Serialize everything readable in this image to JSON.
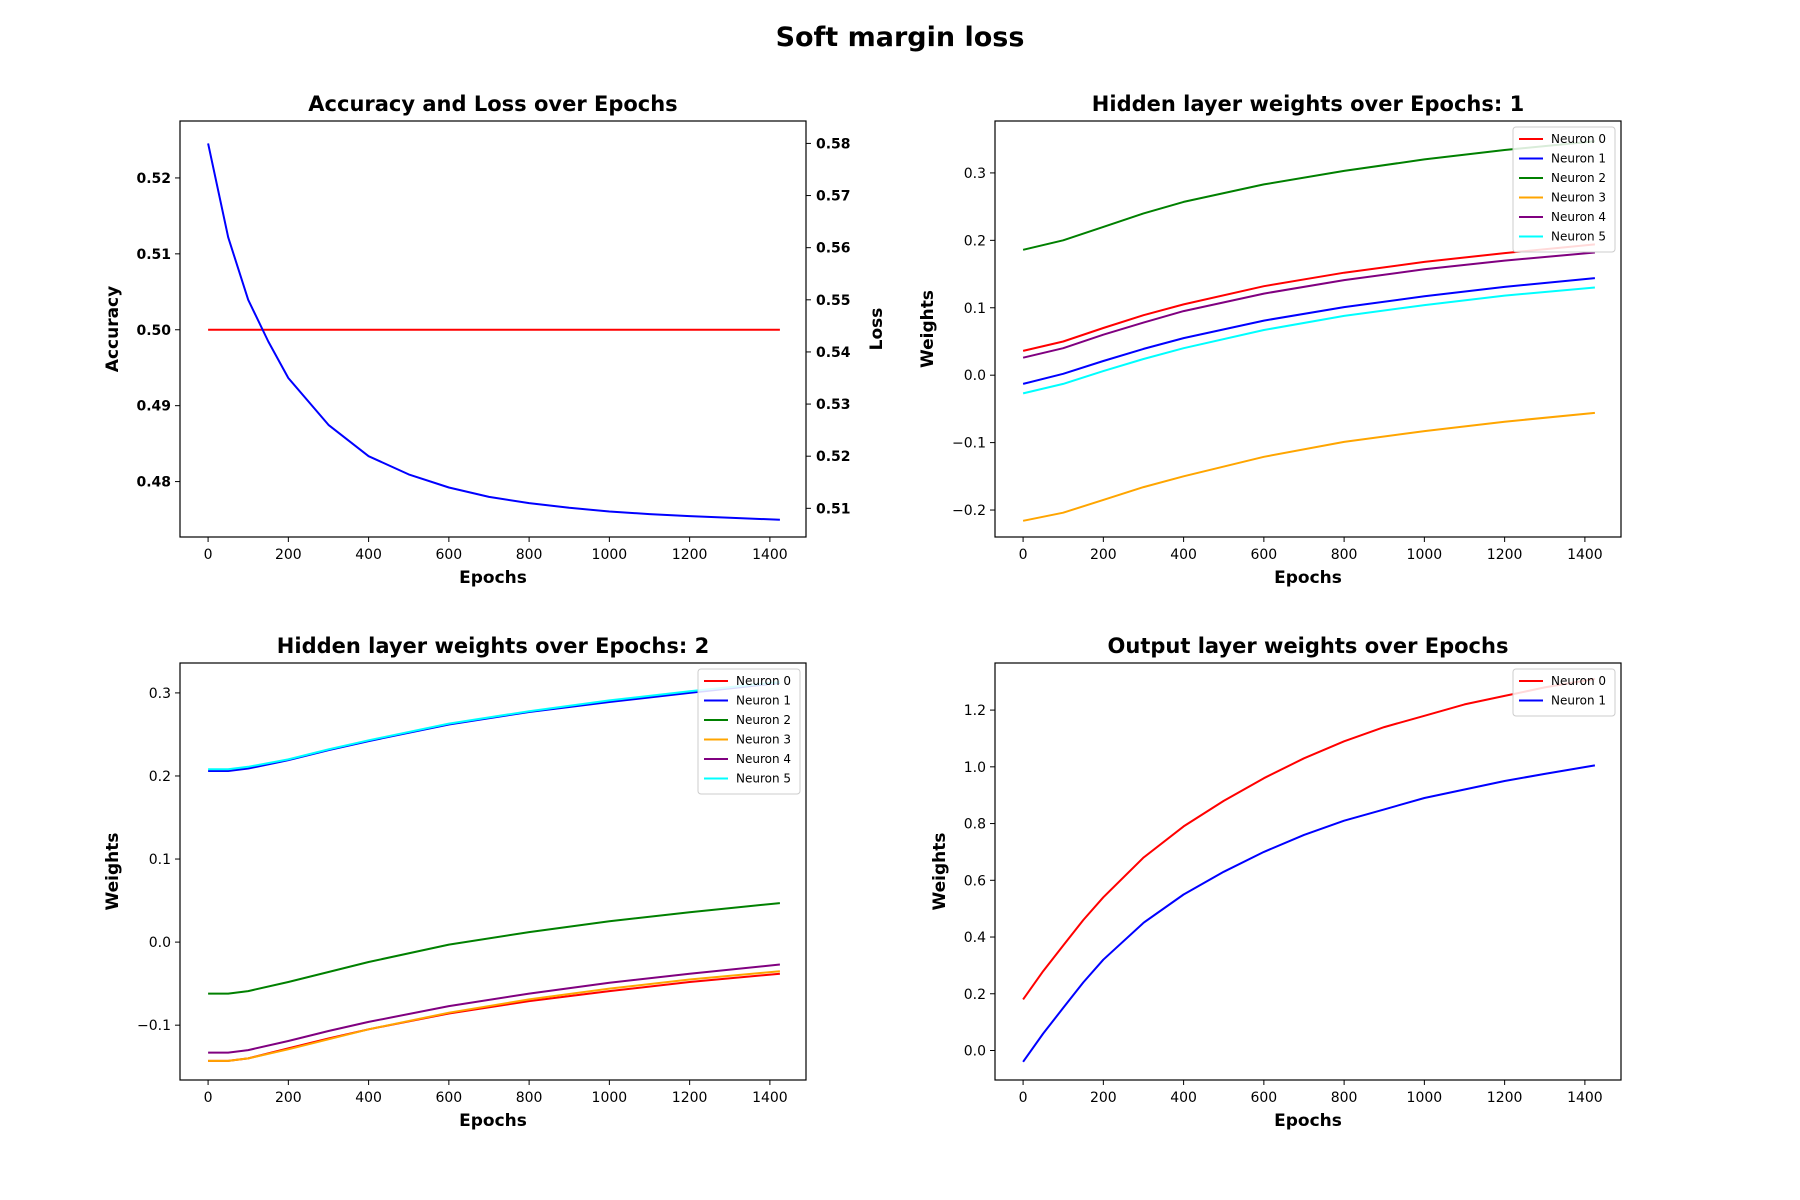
{
  "figure": {
    "title": "Soft margin loss"
  },
  "chart_data": [
    {
      "type": "line",
      "title": "Accuracy and Loss over Epochs",
      "xlabel": "Epochs",
      "xlim": [
        -70,
        1490
      ],
      "xticks": [
        0,
        200,
        400,
        600,
        800,
        1000,
        1200,
        1400
      ],
      "left_axis": {
        "label": "Accuracy",
        "color": "#ff0000",
        "ylim": [
          0.4727,
          0.5275
        ],
        "ticks": [
          0.48,
          0.49,
          0.5,
          0.51,
          0.52
        ],
        "tick_labels": [
          "0.48",
          "0.49",
          "0.50",
          "0.51",
          "0.52"
        ]
      },
      "right_axis": {
        "label": "Loss",
        "color": "#0000ff",
        "ylim": [
          0.5045,
          0.5843
        ],
        "ticks": [
          0.51,
          0.52,
          0.53,
          0.54,
          0.55,
          0.56,
          0.57,
          0.58
        ],
        "tick_labels": [
          "0.51",
          "0.52",
          "0.53",
          "0.54",
          "0.55",
          "0.56",
          "0.57",
          "0.58"
        ]
      },
      "legend": null,
      "series": [
        {
          "axis": "left",
          "color": "#ff0000",
          "x": [
            0,
            1425
          ],
          "y": [
            0.5,
            0.5
          ]
        },
        {
          "axis": "right",
          "color": "#0000ff",
          "x": [
            0,
            50,
            100,
            150,
            200,
            300,
            400,
            500,
            600,
            700,
            800,
            900,
            1000,
            1100,
            1200,
            1300,
            1425
          ],
          "y": [
            0.58,
            0.562,
            0.55,
            0.542,
            0.535,
            0.526,
            0.52,
            0.5165,
            0.514,
            0.5122,
            0.511,
            0.5101,
            0.5094,
            0.5089,
            0.5085,
            0.5082,
            0.5078
          ]
        }
      ]
    },
    {
      "type": "line",
      "title": "Hidden layer weights over Epochs: 1",
      "xlabel": "Epochs",
      "ylabel": "Weights",
      "xlim": [
        -70,
        1490
      ],
      "xticks": [
        0,
        200,
        400,
        600,
        800,
        1000,
        1200,
        1400
      ],
      "ylim": [
        -0.24,
        0.377
      ],
      "yticks": [
        -0.2,
        -0.1,
        0.0,
        0.1,
        0.2,
        0.3
      ],
      "ytick_labels": [
        "−0.2",
        "−0.1",
        "0.0",
        "0.1",
        "0.2",
        "0.3"
      ],
      "legend": "top-right",
      "series": [
        {
          "name": "Neuron 0",
          "color": "#ff0000",
          "x": [
            0,
            100,
            200,
            300,
            400,
            600,
            800,
            1000,
            1200,
            1425
          ],
          "y": [
            0.036,
            0.05,
            0.07,
            0.089,
            0.105,
            0.132,
            0.152,
            0.168,
            0.181,
            0.194
          ]
        },
        {
          "name": "Neuron 1",
          "color": "#0000ff",
          "x": [
            0,
            100,
            200,
            300,
            400,
            600,
            800,
            1000,
            1200,
            1425
          ],
          "y": [
            -0.013,
            0.002,
            0.021,
            0.039,
            0.055,
            0.081,
            0.101,
            0.117,
            0.131,
            0.144
          ]
        },
        {
          "name": "Neuron 2",
          "color": "#008000",
          "x": [
            0,
            100,
            200,
            300,
            400,
            600,
            800,
            1000,
            1200,
            1425
          ],
          "y": [
            0.186,
            0.2,
            0.22,
            0.24,
            0.257,
            0.283,
            0.303,
            0.32,
            0.334,
            0.347
          ]
        },
        {
          "name": "Neuron 3",
          "color": "#ffa500",
          "x": [
            0,
            100,
            200,
            300,
            400,
            600,
            800,
            1000,
            1200,
            1425
          ],
          "y": [
            -0.216,
            -0.204,
            -0.185,
            -0.166,
            -0.15,
            -0.121,
            -0.099,
            -0.083,
            -0.069,
            -0.056
          ]
        },
        {
          "name": "Neuron 4",
          "color": "#800080",
          "x": [
            0,
            100,
            200,
            300,
            400,
            600,
            800,
            1000,
            1200,
            1425
          ],
          "y": [
            0.026,
            0.04,
            0.06,
            0.078,
            0.095,
            0.121,
            0.141,
            0.157,
            0.17,
            0.182
          ]
        },
        {
          "name": "Neuron 5",
          "color": "#00ffff",
          "x": [
            0,
            100,
            200,
            300,
            400,
            600,
            800,
            1000,
            1200,
            1425
          ],
          "y": [
            -0.027,
            -0.013,
            0.006,
            0.024,
            0.04,
            0.067,
            0.088,
            0.104,
            0.118,
            0.13
          ]
        }
      ]
    },
    {
      "type": "line",
      "title": "Hidden layer weights over Epochs: 2",
      "xlabel": "Epochs",
      "ylabel": "Weights",
      "xlim": [
        -70,
        1490
      ],
      "xticks": [
        0,
        200,
        400,
        600,
        800,
        1000,
        1200,
        1400
      ],
      "ylim": [
        -0.166,
        0.336
      ],
      "yticks": [
        -0.1,
        0.0,
        0.1,
        0.2,
        0.3
      ],
      "ytick_labels": [
        "−0.1",
        "0.0",
        "0.1",
        "0.2",
        "0.3"
      ],
      "legend": "top-right",
      "series": [
        {
          "name": "Neuron 0",
          "color": "#ff0000",
          "x": [
            0,
            50,
            100,
            200,
            300,
            400,
            600,
            800,
            1000,
            1200,
            1425
          ],
          "y": [
            -0.143,
            -0.143,
            -0.14,
            -0.128,
            -0.116,
            -0.105,
            -0.086,
            -0.071,
            -0.059,
            -0.048,
            -0.038
          ]
        },
        {
          "name": "Neuron 1",
          "color": "#0000ff",
          "x": [
            0,
            50,
            100,
            200,
            300,
            400,
            600,
            800,
            1000,
            1200,
            1425
          ],
          "y": [
            0.206,
            0.206,
            0.209,
            0.219,
            0.231,
            0.242,
            0.262,
            0.277,
            0.289,
            0.3,
            0.312
          ]
        },
        {
          "name": "Neuron 2",
          "color": "#008000",
          "x": [
            0,
            50,
            100,
            200,
            300,
            400,
            600,
            800,
            1000,
            1200,
            1425
          ],
          "y": [
            -0.062,
            -0.062,
            -0.059,
            -0.048,
            -0.036,
            -0.024,
            -0.003,
            0.012,
            0.025,
            0.036,
            0.047
          ]
        },
        {
          "name": "Neuron 3",
          "color": "#ffa500",
          "x": [
            0,
            50,
            100,
            200,
            300,
            400,
            600,
            800,
            1000,
            1200,
            1425
          ],
          "y": [
            -0.143,
            -0.143,
            -0.14,
            -0.129,
            -0.117,
            -0.105,
            -0.085,
            -0.069,
            -0.056,
            -0.045,
            -0.035
          ]
        },
        {
          "name": "Neuron 4",
          "color": "#800080",
          "x": [
            0,
            50,
            100,
            200,
            300,
            400,
            600,
            800,
            1000,
            1200,
            1425
          ],
          "y": [
            -0.133,
            -0.133,
            -0.13,
            -0.119,
            -0.107,
            -0.096,
            -0.077,
            -0.062,
            -0.049,
            -0.038,
            -0.027
          ]
        },
        {
          "name": "Neuron 5",
          "color": "#00ffff",
          "x": [
            0,
            50,
            100,
            200,
            300,
            400,
            600,
            800,
            1000,
            1200,
            1425
          ],
          "y": [
            0.208,
            0.208,
            0.211,
            0.22,
            0.232,
            0.243,
            0.263,
            0.278,
            0.291,
            0.302,
            0.313
          ]
        }
      ]
    },
    {
      "type": "line",
      "title": "Output layer weights over Epochs",
      "xlabel": "Epochs",
      "ylabel": "Weights",
      "xlim": [
        -70,
        1490
      ],
      "xticks": [
        0,
        200,
        400,
        600,
        800,
        1000,
        1200,
        1400
      ],
      "ylim": [
        -0.104,
        1.366
      ],
      "yticks": [
        0.0,
        0.2,
        0.4,
        0.6,
        0.8,
        1.0,
        1.2
      ],
      "ytick_labels": [
        "0.0",
        "0.2",
        "0.4",
        "0.6",
        "0.8",
        "1.0",
        "1.2"
      ],
      "legend": "top-right",
      "series": [
        {
          "name": "Neuron 0",
          "color": "#ff0000",
          "x": [
            0,
            50,
            100,
            150,
            200,
            300,
            400,
            500,
            600,
            700,
            800,
            900,
            1000,
            1100,
            1200,
            1300,
            1425
          ],
          "y": [
            0.18,
            0.28,
            0.37,
            0.46,
            0.54,
            0.68,
            0.79,
            0.88,
            0.96,
            1.03,
            1.09,
            1.14,
            1.18,
            1.22,
            1.25,
            1.28,
            1.31
          ]
        },
        {
          "name": "Neuron 1",
          "color": "#0000ff",
          "x": [
            0,
            50,
            100,
            150,
            200,
            300,
            400,
            500,
            600,
            700,
            800,
            900,
            1000,
            1100,
            1200,
            1300,
            1425
          ],
          "y": [
            -0.04,
            0.06,
            0.15,
            0.24,
            0.32,
            0.45,
            0.55,
            0.63,
            0.7,
            0.76,
            0.81,
            0.85,
            0.89,
            0.92,
            0.95,
            0.975,
            1.005
          ]
        }
      ]
    }
  ]
}
